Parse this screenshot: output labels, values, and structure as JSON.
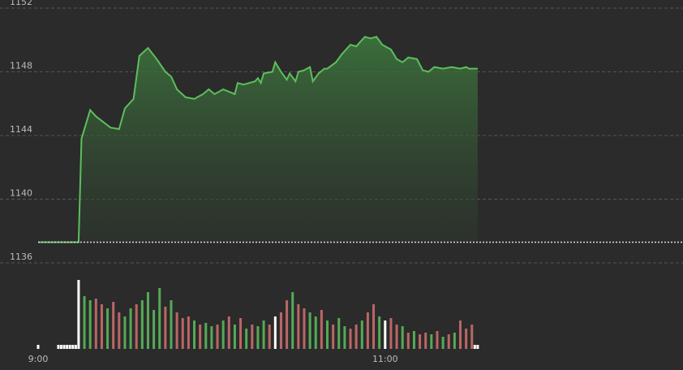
{
  "chart_data": [
    {
      "type": "line",
      "xlim": [
        0,
        223
      ],
      "ylim": [
        1136,
        1152
      ],
      "yticks": [
        1136,
        1140,
        1144,
        1148,
        1152
      ],
      "grid": true,
      "reference": 1137.3,
      "series": [
        {
          "color": "#5cbf5c",
          "x": [
            0,
            14,
            15,
            18,
            20,
            25,
            28,
            30,
            33,
            35,
            38,
            41,
            44,
            46,
            48,
            51,
            54,
            57,
            59,
            61,
            64,
            68,
            69,
            71,
            75,
            76,
            77,
            78,
            81,
            82,
            84,
            86,
            87,
            89,
            90,
            92,
            94,
            95,
            97,
            99,
            100,
            103,
            105,
            108,
            110,
            113,
            115,
            117,
            119,
            122,
            124,
            126,
            128,
            131,
            133,
            135,
            137,
            140,
            143,
            146,
            148,
            149,
            152
          ],
          "values": [
            1137.3,
            1137.3,
            1143.8,
            1145.6,
            1145.2,
            1144.5,
            1144.4,
            1145.7,
            1146.3,
            1149,
            1149.5,
            1148.8,
            1148,
            1147.7,
            1146.9,
            1146.4,
            1146.3,
            1146.6,
            1146.9,
            1146.6,
            1146.9,
            1146.6,
            1147.3,
            1147.2,
            1147.4,
            1147.6,
            1147.3,
            1147.9,
            1148,
            1148.6,
            1148,
            1147.5,
            1147.9,
            1147.4,
            1148,
            1148.1,
            1148.3,
            1147.4,
            1147.9,
            1148.2,
            1148.2,
            1148.6,
            1149.1,
            1149.7,
            1149.6,
            1150.2,
            1150.1,
            1150.2,
            1149.7,
            1149.4,
            1148.8,
            1148.6,
            1148.9,
            1148.8,
            1148.1,
            1148,
            1148.3,
            1148.2,
            1148.3,
            1148.2,
            1148.3,
            1148.2,
            1148.2
          ]
        }
      ]
    },
    {
      "type": "bar",
      "xlim": [
        0,
        223
      ],
      "ylim": [
        0,
        90
      ],
      "xticks": [
        {
          "value": 0,
          "label": "9:00"
        },
        {
          "value": 120,
          "label": "11:00"
        }
      ],
      "x": [
        0,
        7,
        8,
        9,
        10,
        11,
        12,
        13,
        14,
        16,
        18,
        20,
        22,
        24,
        26,
        28,
        30,
        32,
        34,
        36,
        38,
        40,
        42,
        44,
        46,
        48,
        50,
        52,
        54,
        56,
        58,
        60,
        62,
        64,
        66,
        68,
        70,
        72,
        74,
        76,
        78,
        80,
        82,
        84,
        86,
        88,
        90,
        92,
        94,
        96,
        98,
        100,
        102,
        104,
        106,
        108,
        110,
        112,
        114,
        116,
        118,
        120,
        122,
        124,
        126,
        128,
        130,
        132,
        134,
        136,
        138,
        140,
        142,
        144,
        146,
        148,
        150,
        151,
        152
      ],
      "values": [
        5,
        5,
        5,
        5,
        5,
        5,
        5,
        5,
        85,
        65,
        60,
        62,
        55,
        50,
        58,
        45,
        40,
        50,
        55,
        60,
        70,
        48,
        75,
        52,
        60,
        45,
        38,
        40,
        35,
        30,
        32,
        28,
        30,
        35,
        40,
        30,
        38,
        25,
        30,
        28,
        35,
        30,
        40,
        45,
        60,
        70,
        55,
        50,
        45,
        40,
        48,
        35,
        30,
        38,
        28,
        25,
        30,
        35,
        45,
        55,
        40,
        35,
        38,
        30,
        28,
        20,
        22,
        18,
        20,
        18,
        22,
        15,
        18,
        20,
        35,
        25,
        30,
        5,
        5
      ],
      "colors": [
        "#fff",
        "#fff",
        "#fff",
        "#fff",
        "#fff",
        "#fff",
        "#fff",
        "#fff",
        "#fff",
        "#5a5",
        "#5a5",
        "#b66",
        "#b66",
        "#5a5",
        "#b66",
        "#b66",
        "#5a5",
        "#5a5",
        "#b66",
        "#5a5",
        "#5a5",
        "#5a5",
        "#5a5",
        "#b66",
        "#5a5",
        "#b66",
        "#b66",
        "#b66",
        "#5a5",
        "#b66",
        "#5a5",
        "#5a5",
        "#b66",
        "#5a5",
        "#b66",
        "#5a5",
        "#b66",
        "#5a5",
        "#b66",
        "#5a5",
        "#5a5",
        "#b66",
        "#fff",
        "#b66",
        "#b66",
        "#5a5",
        "#b66",
        "#b66",
        "#5a5",
        "#5a5",
        "#b66",
        "#5a5",
        "#b66",
        "#5a5",
        "#5a5",
        "#b66",
        "#b66",
        "#5a5",
        "#b66",
        "#b66",
        "#5a5",
        "#fff",
        "#b66",
        "#b66",
        "#5a5",
        "#b66",
        "#5a5",
        "#b66",
        "#b66",
        "#5a5",
        "#b66",
        "#5a5",
        "#b66",
        "#5a5",
        "#b66",
        "#b66",
        "#b66",
        "#fff",
        "#fff"
      ]
    }
  ]
}
